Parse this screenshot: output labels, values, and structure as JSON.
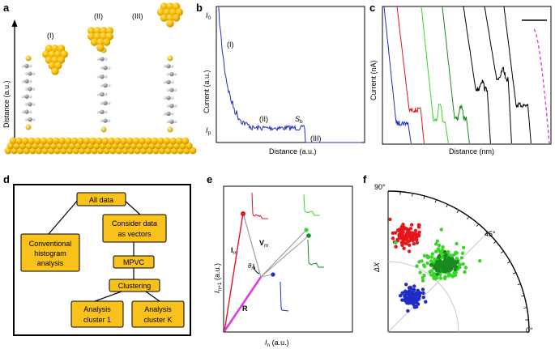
{
  "panels": {
    "a": {
      "label": "a",
      "ylabel": "Distance (a.u.)",
      "stages": [
        "(I)",
        "(II)",
        "(III)"
      ],
      "colors": {
        "gold": "#f6b800",
        "gold_dark": "#c98f00",
        "sulfur": "#e6c200",
        "carbon": "#8c8c8c",
        "hydrogen": "#e8e8e8"
      }
    },
    "b": {
      "label": "b",
      "xlabel": "Distance (a.u.)",
      "ylabel": "Current (a.u.)",
      "y_ticks": [
        "I0",
        "Ip"
      ],
      "y_ticks_main": [
        "I",
        "I"
      ],
      "y_ticks_sub": [
        "0",
        "p"
      ],
      "annotations": [
        "(I)",
        "(II)",
        "(III)"
      ],
      "sb_main": "S",
      "sb_sub": "b",
      "line_color": "#1f2cc8"
    },
    "c": {
      "label": "c",
      "xlabel": "Distance (nm)",
      "ylabel": "Current (nA)",
      "trace_colors": [
        "#1f2cc8",
        "#e8141b",
        "#37d629",
        "#198a1f",
        "#000000",
        "#000000",
        "#000000",
        "#e23be0"
      ]
    },
    "d": {
      "label": "d",
      "boxes": {
        "all_data": "All data",
        "consider_1": "Consider data",
        "consider_2": "as vectors",
        "conventional_1": "Conventional",
        "conventional_2": "histogram",
        "conventional_3": "analysis",
        "mpvc": "MPVC",
        "clustering": "Clustering",
        "analysis1_1": "Analysis",
        "analysis1_2": "cluster 1",
        "analysisK_1": "Analysis",
        "analysisK_2": "cluster K"
      },
      "box_color": "#f8c11b"
    },
    "e": {
      "label": "e",
      "xlabel_main": "I",
      "xlabel_sub": "n",
      "xlabel_unit": " (a.u.)",
      "ylabel_main": "I",
      "ylabel_sub": "n+1",
      "ylabel_unit": " (a.u.)",
      "vec_I_main": "I",
      "vec_I_sub": "m",
      "vec_V_main": "V",
      "vec_V_sub": "m",
      "angle_main": "θ",
      "angle_sub": "m",
      "vec_R": "R",
      "colors": {
        "red": "#e8141b",
        "magenta": "#e23be0",
        "blue": "#1f2cc8",
        "green": "#37d629",
        "dark_green": "#198a1f",
        "gray": "#9a9a9a"
      }
    },
    "f": {
      "label": "f",
      "ylabel": "ΔX",
      "angle_labels": [
        "90°",
        "45°",
        "0°"
      ],
      "clusters": [
        {
          "name": "red",
          "color": "#e8141b"
        },
        {
          "name": "green",
          "color": "#37d629"
        },
        {
          "name": "dark-green",
          "color": "#198a1f"
        },
        {
          "name": "blue",
          "color": "#1f2cc8"
        }
      ]
    }
  }
}
